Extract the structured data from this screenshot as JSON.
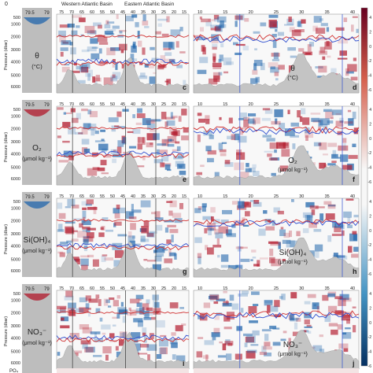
{
  "figure": {
    "basin_labels": {
      "western": "Western Atlantic Basin",
      "eastern": "Eastern Atlantic Basin"
    },
    "top_labels": {
      "left_partial": "0"
    },
    "ylabel": "Pressure (dbar)",
    "left_small_ticks": [
      "79.5",
      "79"
    ],
    "mid_xticks": [
      "75",
      "70",
      "65",
      "60",
      "55",
      "50",
      "45",
      "40",
      "35",
      "30",
      "25",
      "20",
      "15"
    ],
    "right_xticks": [
      "10",
      "15",
      "20",
      "25",
      "30",
      "35",
      "40"
    ],
    "yticks": [
      "500",
      "1000",
      "2000",
      "3000",
      "4000",
      "5000",
      "6000"
    ],
    "rows": [
      {
        "name": "θ",
        "unit": "(°C)",
        "mid_letter": "c",
        "right_letter": "d"
      },
      {
        "name": "O₂",
        "unit": "(μmol kg⁻¹)",
        "mid_letter": "e",
        "right_letter": "f"
      },
      {
        "name": "Si(OH)₄",
        "unit": "(μmol kg⁻¹)",
        "mid_letter": "g",
        "right_letter": "h"
      },
      {
        "name": "NO₃⁻",
        "unit": "(μmol kg⁻¹)",
        "mid_letter": "i",
        "right_letter": "j"
      }
    ],
    "bottom_partial_label": "PO₄",
    "colorbar_ticks": [
      "4",
      "2",
      "0",
      "-2",
      "-4",
      "-6"
    ],
    "colors": {
      "positive": "#b2182b",
      "negative": "#2166ac",
      "terrain": "#c4c4c4",
      "line_blue": "#3050d0",
      "line_red": "#d03030"
    }
  }
}
